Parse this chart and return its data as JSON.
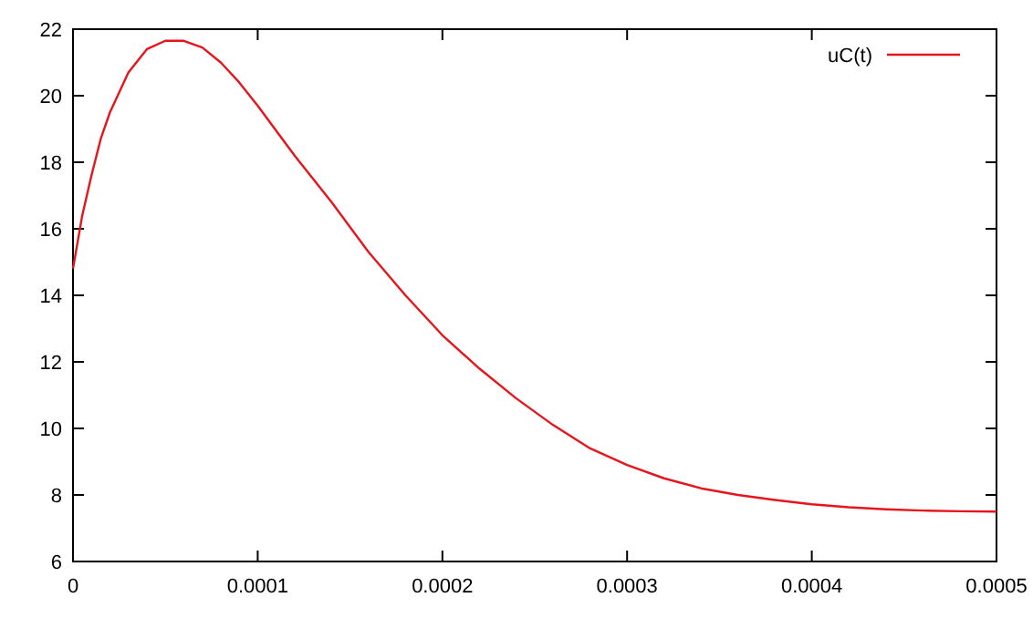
{
  "chart_data": {
    "type": "line",
    "xlim": [
      0,
      0.0005
    ],
    "ylim": [
      6,
      22
    ],
    "xticks": [
      0,
      0.0001,
      0.0002,
      0.0003,
      0.0004,
      0.0005
    ],
    "yticks": [
      6,
      8,
      10,
      12,
      14,
      16,
      18,
      20,
      22
    ],
    "grid": false,
    "legend": "top right",
    "marker": "none",
    "line_style": "solid",
    "series": [
      {
        "name": "uC(t)",
        "color": "#e8141c",
        "x": [
          0,
          5e-06,
          1e-05,
          1.5e-05,
          2e-05,
          3e-05,
          4e-05,
          5e-05,
          6e-05,
          7e-05,
          8e-05,
          9e-05,
          0.0001,
          0.00012,
          0.00014,
          0.00016,
          0.00018,
          0.0002,
          0.00022,
          0.00024,
          0.00026,
          0.00028,
          0.0003,
          0.00032,
          0.00034,
          0.00036,
          0.00038,
          0.0004,
          0.00042,
          0.00044,
          0.00046,
          0.00048,
          0.0005
        ],
        "values": [
          14.8,
          16.4,
          17.6,
          18.7,
          19.5,
          20.7,
          21.4,
          21.65,
          21.65,
          21.45,
          21.0,
          20.4,
          19.7,
          18.2,
          16.8,
          15.3,
          14.0,
          12.8,
          11.8,
          10.9,
          10.1,
          9.4,
          8.9,
          8.5,
          8.2,
          8.0,
          7.85,
          7.72,
          7.63,
          7.57,
          7.53,
          7.51,
          7.5
        ]
      }
    ]
  }
}
